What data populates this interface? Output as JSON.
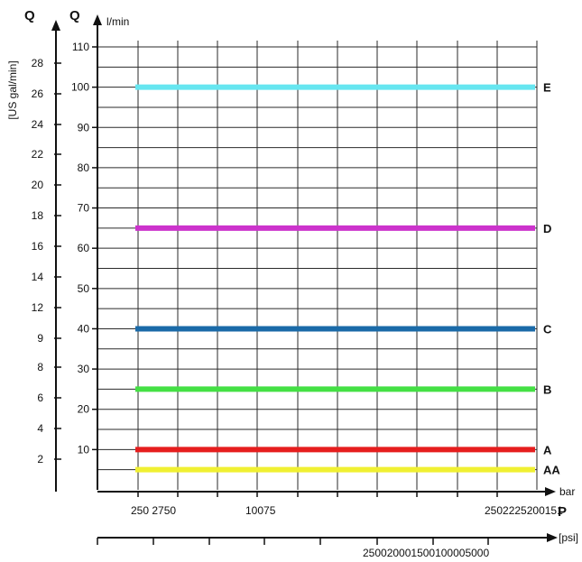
{
  "chart_data": {
    "type": "line",
    "grid": true,
    "left_axis": {
      "title": "Q",
      "unit": "[US gal/min]",
      "tick_labels": [
        "2",
        "4",
        "6",
        "8",
        "9",
        "12",
        "14",
        "16",
        "18",
        "20",
        "22",
        "24",
        "26",
        "28"
      ]
    },
    "y_axis": {
      "title": "Q",
      "unit": "l/min",
      "ylim": [
        0,
        110
      ],
      "tick_values": [
        10,
        20,
        30,
        40,
        50,
        60,
        70,
        80,
        90,
        100,
        110
      ],
      "tick_labels": [
        "10",
        "20",
        "30",
        "40",
        "50",
        "60",
        "70",
        "80",
        "90",
        "100",
        "110"
      ]
    },
    "x_axis": {
      "unit": "bar",
      "title": "P",
      "tick_labels": [
        "250 2750",
        "10075",
        "2502225200151"
      ]
    },
    "psi_axis": {
      "unit": "[psi]",
      "tick_labels": [
        "250020001500100005000"
      ]
    },
    "series": [
      {
        "name": "E",
        "y": 100,
        "color": "#66e6f0",
        "x_start": 250,
        "x_end": 200
      },
      {
        "name": "D",
        "y": 65,
        "color": "#cc33cc",
        "x_start": 250,
        "x_end": 200
      },
      {
        "name": "C",
        "y": 40,
        "color": "#1a6aa8",
        "x_start": 250,
        "x_end": 200
      },
      {
        "name": "B",
        "y": 25,
        "color": "#44e044",
        "x_start": 250,
        "x_end": 200
      },
      {
        "name": "A",
        "y": 10,
        "color": "#e61e1e",
        "x_start": 250,
        "x_end": 200
      },
      {
        "name": "AA",
        "y": 5,
        "color": "#f0f032",
        "x_start": 250,
        "x_end": 200
      }
    ]
  }
}
